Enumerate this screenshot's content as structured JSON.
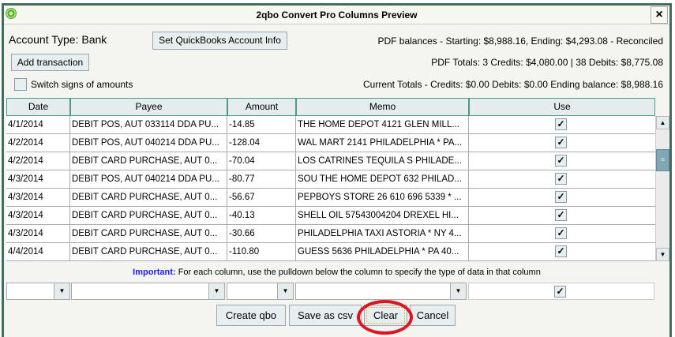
{
  "window": {
    "title": "2qbo Convert Pro Columns Preview",
    "close_icon": "×"
  },
  "account_type": "Account Type: Bank",
  "buttons": {
    "set_qb": "Set QuickBooks Account Info",
    "add_transaction": "Add transaction",
    "create_qbo": "Create qbo",
    "save_csv": "Save as csv",
    "clear": "Clear",
    "cancel": "Cancel"
  },
  "switch_signs": {
    "label": "Switch signs of amounts",
    "checked": false
  },
  "info": {
    "pdf_balances": "PDF balances - Starting: $8,988.16, Ending: $4,293.08  - Reconciled",
    "pdf_totals": "PDF Totals:  3 Credits: $4,080.00 | 38 Debits: $8,775.08",
    "current_totals": "Current Totals - Credits: $0.00  Debits: $0.00   Ending balance: $8,988.16"
  },
  "table": {
    "columns": [
      "Date",
      "Payee",
      "Amount",
      "Memo",
      "Use"
    ],
    "rows": [
      {
        "date": "4/1/2014",
        "payee": "DEBIT POS, AUT 033114 DDA PU...",
        "amount": "-14.85",
        "memo": "THE HOME DEPOT 4121 GLEN MILL...",
        "use": true
      },
      {
        "date": "4/2/2014",
        "payee": "DEBIT POS, AUT 040214 DDA PU...",
        "amount": "-128.04",
        "memo": "WAL MART 2141 PHILADELPHIA * PA...",
        "use": true
      },
      {
        "date": "4/2/2014",
        "payee": "DEBIT CARD PURCHASE, AUT 0...",
        "amount": "-70.04",
        "memo": "LOS CATRINES TEQUILA S PHILADE...",
        "use": true
      },
      {
        "date": "4/3/2014",
        "payee": "DEBIT POS, AUT 040214 DDA PU...",
        "amount": "-80.77",
        "memo": "SOU THE HOME DEPOT 632 PHILAD...",
        "use": true
      },
      {
        "date": "4/3/2014",
        "payee": "DEBIT CARD PURCHASE, AUT 0...",
        "amount": "-56.67",
        "memo": "PEPBOYS STORE 26 610 696 5339 * ...",
        "use": true
      },
      {
        "date": "4/3/2014",
        "payee": "DEBIT CARD PURCHASE, AUT 0...",
        "amount": "-40.13",
        "memo": "SHELL OIL 57543004204 DREXEL HI...",
        "use": true
      },
      {
        "date": "4/3/2014",
        "payee": "DEBIT CARD PURCHASE, AUT 0...",
        "amount": "-30.66",
        "memo": "PHILADELPHIA TAXI ASTORIA * NY 4...",
        "use": true
      },
      {
        "date": "4/4/2014",
        "payee": "DEBIT CARD PURCHASE, AUT 0...",
        "amount": "-110.80",
        "memo": "GUESS 5636 PHILADELPHIA * PA 40...",
        "use": true
      }
    ]
  },
  "important": {
    "label": "Important:",
    "text": " For each column, use the pulldown below the column to specify the type of data in that column"
  },
  "colors": {
    "frame": "#3f6f5c",
    "header_border": "#4a9a86",
    "important": "#1a1aff",
    "highlight_circle": "#e0141e"
  }
}
